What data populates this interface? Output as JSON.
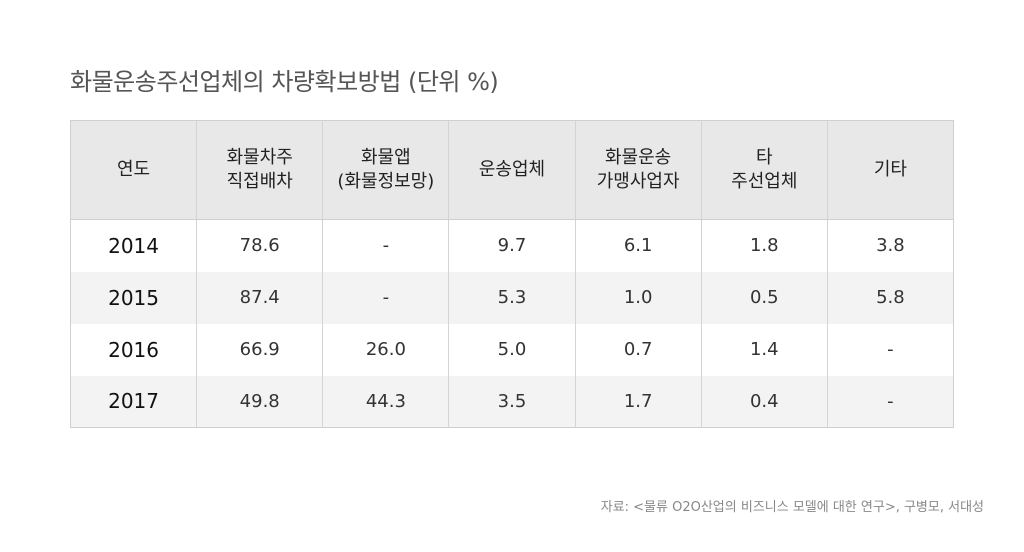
{
  "title": "화물운송주선업체의 차량확보방법  (단위 %)",
  "source": "자료: <물류 O2O산업의 비즈니스 모델에 대한 연구>, 구병모, 서대성",
  "chart_data": {
    "type": "table",
    "title": "화물운송주선업체의 차량확보방법  (단위 %)",
    "columns": [
      [
        "연도"
      ],
      [
        "화물차주",
        "직접배차"
      ],
      [
        "화물앱",
        "(화물정보망)"
      ],
      [
        "운송업체"
      ],
      [
        "화물운송",
        "가맹사업자"
      ],
      [
        "타",
        "주선업체"
      ],
      [
        "기타"
      ]
    ],
    "rows": [
      [
        "2014",
        "78.6",
        "-",
        "9.7",
        "6.1",
        "1.8",
        "3.8"
      ],
      [
        "2015",
        "87.4",
        "-",
        "5.3",
        "1.0",
        "0.5",
        "5.8"
      ],
      [
        "2016",
        "66.9",
        "26.0",
        "5.0",
        "0.7",
        "1.4",
        "-"
      ],
      [
        "2017",
        "49.8",
        "44.3",
        "3.5",
        "1.7",
        "0.4",
        "-"
      ]
    ],
    "source": "자료: <물류 O2O산업의 비즈니스 모델에 대한 연구>, 구병모, 서대성"
  }
}
